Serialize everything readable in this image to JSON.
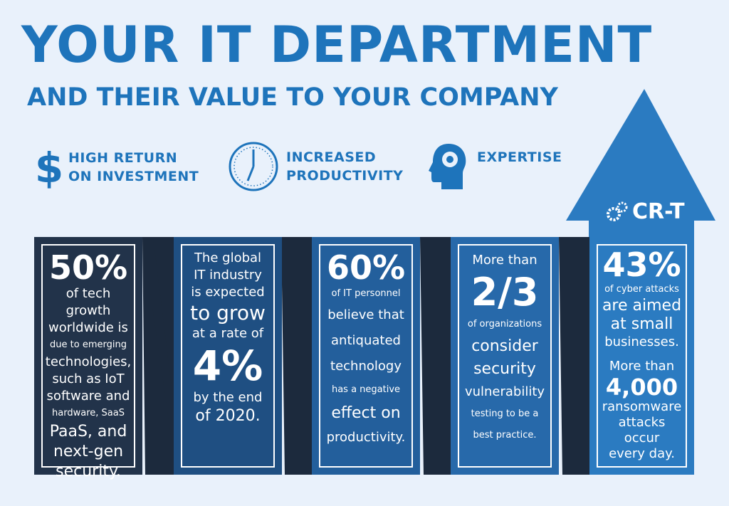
{
  "header": {
    "title": "YOUR IT DEPARTMENT",
    "subtitle": "AND THEIR VALUE TO YOUR COMPANY"
  },
  "values": [
    {
      "icon": "dollar-icon",
      "line1": "HIGH RETURN",
      "line2": "ON INVESTMENT"
    },
    {
      "icon": "clock-icon",
      "line1": "INCREASED",
      "line2": "PRODUCTIVITY"
    },
    {
      "icon": "head-gear-icon",
      "line1": "EXPERTISE",
      "line2": ""
    }
  ],
  "brand": {
    "name": "CR-T",
    "icon": "gears-icon"
  },
  "colors": {
    "accent": "#1e74bb",
    "background": "#e9f1fb",
    "panel1": "#22334a",
    "panel2": "#1f4f82",
    "panel3": "#235f9c",
    "panel4": "#2769aa",
    "panel5": "#2b7bc1"
  },
  "panels": {
    "p1": {
      "big": "50%",
      "l1": "of tech growth",
      "l2": "worldwide is",
      "l3": "due to emerging",
      "l4": "technologies,",
      "l5": "such as IoT",
      "l6": "software and",
      "l7": "hardware, SaaS",
      "l8": "PaaS, and",
      "l9": "next-gen",
      "l10": "security."
    },
    "p2": {
      "l1": "The global",
      "l2": "IT industry",
      "l3": "is expected",
      "l4": "to grow",
      "l5": "at a rate of",
      "big": "4%",
      "l6": "by the end",
      "l7": "of 2020."
    },
    "p3": {
      "big": "60%",
      "l1": "of IT personnel",
      "l2": "believe that",
      "l3": "antiquated",
      "l4": "technology",
      "l5": "has a negative",
      "l6": "effect on",
      "l7": "productivity."
    },
    "p4": {
      "l1": "More than",
      "big": "2/3",
      "l2": "of organizations",
      "l3": "consider",
      "l4": "security",
      "l5": "vulnerability",
      "l6": "testing to be a",
      "l7": "best practice."
    },
    "p5": {
      "big1": "43%",
      "l1": "of cyber attacks",
      "l2": "are aimed",
      "l3": "at small",
      "l4": "businesses.",
      "l5": "More than",
      "big2": "4,000",
      "l6": "ransomware",
      "l7": "attacks occur",
      "l8": "every day."
    }
  }
}
